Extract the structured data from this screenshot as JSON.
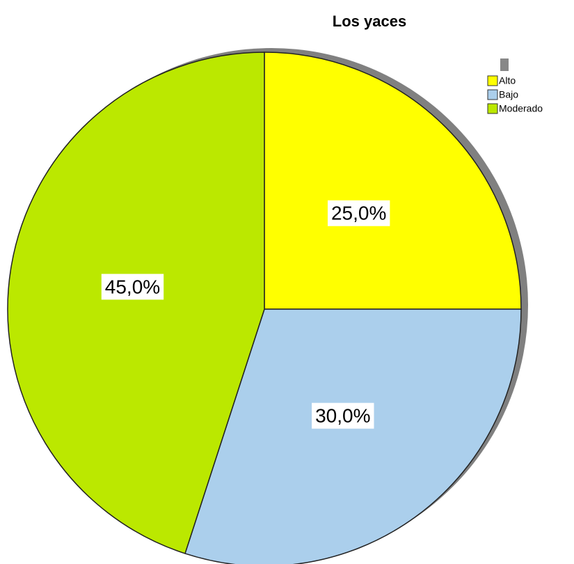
{
  "chart_data": {
    "type": "pie",
    "title": "Los yaces",
    "categories": [
      "Alto",
      "Bajo",
      "Moderado"
    ],
    "values": [
      25,
      30,
      45
    ],
    "value_labels": [
      "25,0%",
      "30,0%",
      "45,0%"
    ],
    "colors": [
      "#ffff00",
      "#abcfec",
      "#bbe800"
    ],
    "legend": "top-right"
  }
}
